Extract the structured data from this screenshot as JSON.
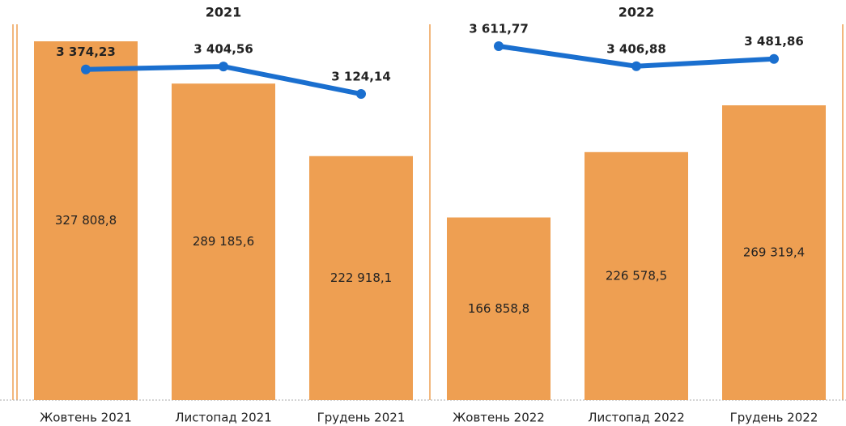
{
  "chart_data": [
    {
      "type": "bar",
      "title": "2021",
      "categories": [
        "Жовтень 2021",
        "Листопад 2021",
        "Грудень 2021"
      ],
      "ylim": [
        0,
        343350
      ],
      "y2lim": [
        0,
        3835
      ],
      "series": [
        {
          "type": "bar",
          "color": "#ee9f52",
          "values": [
            327808.8,
            289185.6,
            222918.1
          ],
          "value_labels": [
            "327 808,8",
            "289 185,6",
            "222 918,1"
          ]
        },
        {
          "type": "line",
          "axis": "y2",
          "color": "#1a6fcf",
          "values": [
            3374.23,
            3404.56,
            3124.14
          ],
          "value_labels": [
            "3 374,23",
            "3 404,56",
            "3 124,14"
          ]
        }
      ]
    },
    {
      "type": "bar",
      "title": "2022",
      "categories": [
        "Жовтень 2022",
        "Листопад 2022",
        "Грудень 2022"
      ],
      "ylim": [
        0,
        343350
      ],
      "y2lim": [
        0,
        3835
      ],
      "series": [
        {
          "type": "bar",
          "color": "#ee9f52",
          "values": [
            166858.8,
            226578.5,
            269319.4
          ],
          "value_labels": [
            "166 858,8",
            "226 578,5",
            "269 319,4"
          ]
        },
        {
          "type": "line",
          "axis": "y2",
          "color": "#1a6fcf",
          "values": [
            3611.77,
            3406.88,
            3481.86
          ],
          "value_labels": [
            "3 611,77",
            "3 406,88",
            "3 481,86"
          ]
        }
      ]
    }
  ]
}
